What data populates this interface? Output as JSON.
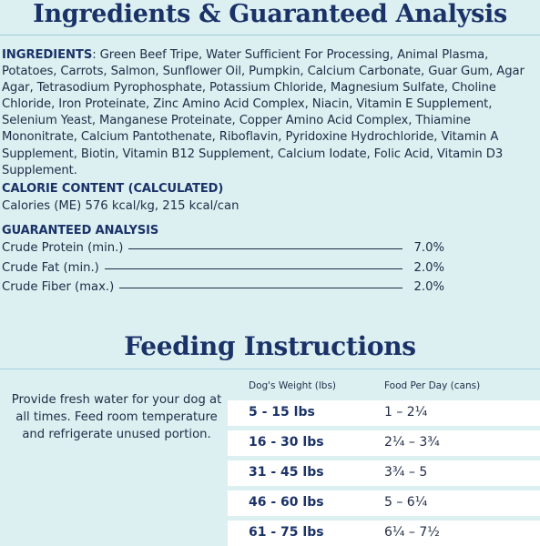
{
  "header": {
    "title": "Ingredients & Guaranteed Analysis"
  },
  "ingredients": {
    "label": "INGREDIENTS",
    "text": ": Green Beef Tripe, Water Sufficient For Processing, Animal Plasma, Potatoes, Carrots, Salmon, Sunflower Oil, Pumpkin, Calcium Carbonate, Guar Gum, Agar Agar, Tetrasodium Pyrophosphate, Potassium Chloride, Magnesium Sulfate, Choline Chloride, Iron Proteinate, Zinc Amino Acid Complex, Niacin, Vitamin E Supplement, Selenium Yeast, Manganese Proteinate, Copper Amino Acid Complex, Thiamine Mononitrate, Calcium Pantothenate, Riboflavin, Pyridoxine Hydrochloride, Vitamin A Supplement, Biotin, Vitamin B12 Supplement, Calcium Iodate, Folic Acid, Vitamin D3 Supplement."
  },
  "calorie": {
    "heading": "CALORIE CONTENT (CALCULATED)",
    "text": "Calories (ME) 576 kcal/kg, 215 kcal/can"
  },
  "analysis": {
    "heading": "GUARANTEED ANALYSIS",
    "rows": [
      {
        "label": "Crude Protein (min.)",
        "value": "7.0%"
      },
      {
        "label": "Crude Fat (min.)",
        "value": "2.0%"
      },
      {
        "label": "Crude Fiber (max.)",
        "value": "2.0%"
      }
    ]
  },
  "feeding": {
    "title": "Feeding Instructions",
    "advice": "Provide fresh water for your dog at all times. Feed room temperature and refrigerate unused portion.",
    "col_weight": "Dog's Weight (lbs)",
    "col_food": "Food Per Day (cans)",
    "rows": [
      {
        "weight": "5 - 15 lbs",
        "food": "1 – 2¼"
      },
      {
        "weight": "16 - 30 lbs",
        "food": "2¼ – 3¾"
      },
      {
        "weight": "31 - 45 lbs",
        "food": "3¾ – 5"
      },
      {
        "weight": "46 - 60 lbs",
        "food": "5 – 6¼"
      },
      {
        "weight": "61 - 75 lbs",
        "food": "6¼ – 7½"
      }
    ]
  }
}
